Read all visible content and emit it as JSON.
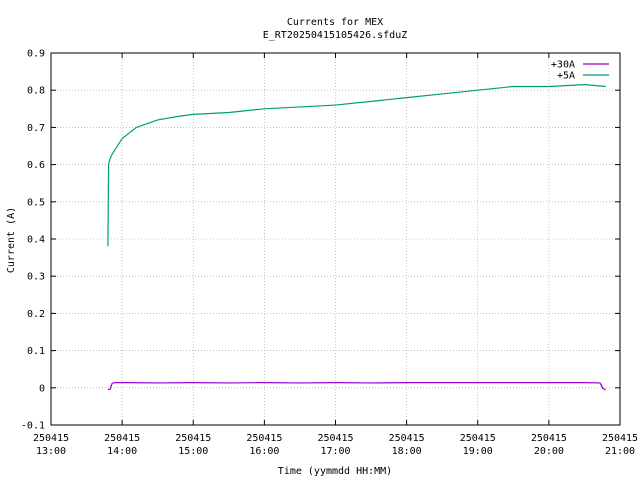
{
  "chart_data": {
    "type": "line",
    "title": "Currents for MEX",
    "subtitle": "E_RT20250415105426.sfduZ",
    "xlabel": "Time (yymmdd HH:MM)",
    "ylabel": "Current (A)",
    "x_unit": "hours",
    "xlim": [
      13.0,
      21.0
    ],
    "ylim": [
      -0.1,
      0.9
    ],
    "grid": true,
    "legend_position": "top-right",
    "x_ticks": [
      {
        "value": 13,
        "date": "250415",
        "time": "13:00"
      },
      {
        "value": 14,
        "date": "250415",
        "time": "14:00"
      },
      {
        "value": 15,
        "date": "250415",
        "time": "15:00"
      },
      {
        "value": 16,
        "date": "250415",
        "time": "16:00"
      },
      {
        "value": 17,
        "date": "250415",
        "time": "17:00"
      },
      {
        "value": 18,
        "date": "250415",
        "time": "18:00"
      },
      {
        "value": 19,
        "date": "250415",
        "time": "19:00"
      },
      {
        "value": 20,
        "date": "250415",
        "time": "20:00"
      },
      {
        "value": 21,
        "date": "250415",
        "time": "21:00"
      }
    ],
    "y_ticks": [
      {
        "value": -0.1,
        "label": "-0.1"
      },
      {
        "value": 0,
        "label": "0"
      },
      {
        "value": 0.1,
        "label": "0.1"
      },
      {
        "value": 0.2,
        "label": "0.2"
      },
      {
        "value": 0.3,
        "label": "0.3"
      },
      {
        "value": 0.4,
        "label": "0.4"
      },
      {
        "value": 0.5,
        "label": "0.5"
      },
      {
        "value": 0.6,
        "label": "0.6"
      },
      {
        "value": 0.7,
        "label": "0.7"
      },
      {
        "value": 0.8,
        "label": "0.8"
      },
      {
        "value": 0.9,
        "label": "0.9"
      }
    ],
    "series": [
      {
        "name": "+30A",
        "color": "#9400d3",
        "x": [
          13.8,
          13.83,
          13.86,
          13.9,
          14.0,
          14.5,
          15.0,
          15.5,
          16.0,
          16.5,
          17.0,
          17.5,
          18.0,
          18.5,
          19.0,
          19.5,
          20.0,
          20.5,
          20.72,
          20.76,
          20.8
        ],
        "y": [
          -0.005,
          -0.004,
          0.012,
          0.014,
          0.014,
          0.013,
          0.014,
          0.013,
          0.014,
          0.013,
          0.014,
          0.013,
          0.014,
          0.014,
          0.014,
          0.014,
          0.014,
          0.014,
          0.013,
          -0.002,
          -0.005
        ]
      },
      {
        "name": "+5A",
        "color": "#009e73",
        "x": [
          13.8,
          13.81,
          13.82,
          13.85,
          13.9,
          14.0,
          14.2,
          14.5,
          14.8,
          15.0,
          15.5,
          16.0,
          16.5,
          17.0,
          17.5,
          18.0,
          18.5,
          19.0,
          19.5,
          20.0,
          20.5,
          20.8
        ],
        "y": [
          0.38,
          0.6,
          0.61,
          0.625,
          0.64,
          0.67,
          0.7,
          0.72,
          0.73,
          0.735,
          0.74,
          0.75,
          0.755,
          0.76,
          0.77,
          0.78,
          0.79,
          0.8,
          0.81,
          0.81,
          0.815,
          0.81
        ]
      }
    ]
  }
}
